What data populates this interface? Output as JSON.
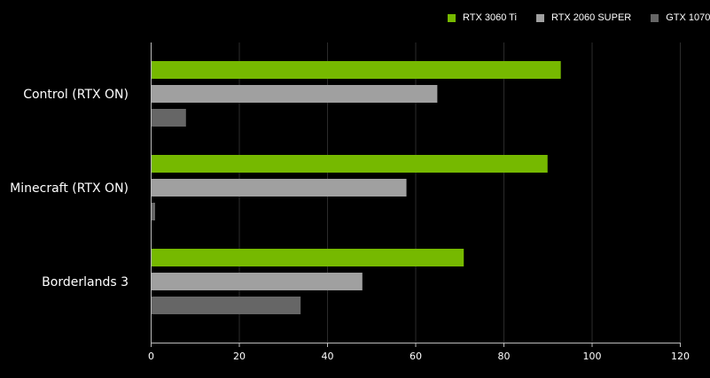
{
  "chart_data": {
    "type": "bar",
    "orientation": "horizontal",
    "title": "",
    "xlabel": "",
    "ylabel": "",
    "categories": [
      "Control (RTX ON)",
      "Minecraft (RTX ON)",
      "Borderlands 3"
    ],
    "series": [
      {
        "name": "RTX 3060 Ti",
        "color": "#76b900",
        "values": [
          93,
          90,
          71
        ]
      },
      {
        "name": "RTX 2060 SUPER",
        "color": "#a0a0a0",
        "values": [
          65,
          58,
          48
        ]
      },
      {
        "name": "GTX 1070",
        "color": "#666666",
        "values": [
          8,
          1,
          34
        ]
      }
    ],
    "xlim": [
      0,
      120
    ],
    "xticks": [
      0,
      20,
      40,
      60,
      80,
      100,
      120
    ],
    "grid": "vertical",
    "legend_position": "top-right"
  }
}
